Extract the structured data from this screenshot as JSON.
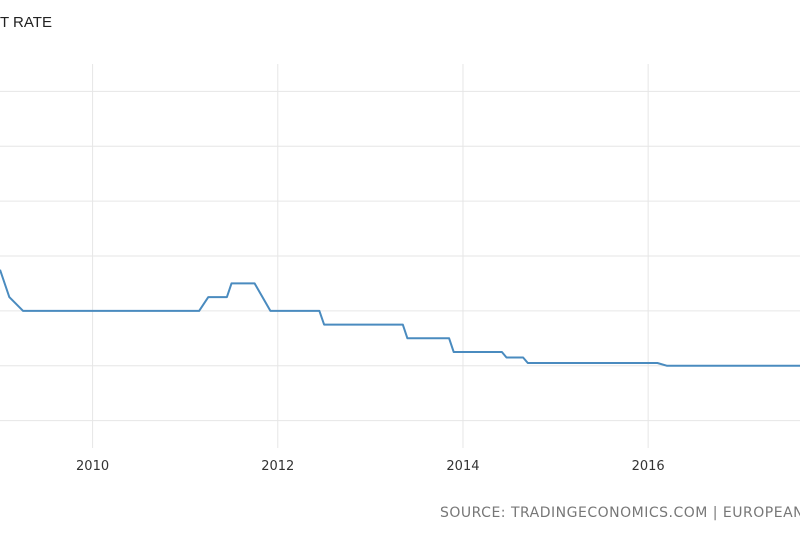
{
  "chart_data": {
    "type": "line",
    "title": "T RATE",
    "xlabel": "",
    "ylabel": "",
    "x_ticks": [
      "2010",
      "2012",
      "2014",
      "2016"
    ],
    "xlim": [
      2009.0,
      2017.64
    ],
    "ylim": [
      -1.5,
      5.5
    ],
    "grid": true,
    "legend": "none",
    "series": [
      {
        "color": "#4a8bbf",
        "points": [
          [
            2009.0,
            1.75
          ],
          [
            2009.1,
            1.25
          ],
          [
            2009.25,
            1.0
          ],
          [
            2009.9,
            1.0
          ],
          [
            2010.5,
            1.0
          ],
          [
            2011.0,
            1.0
          ],
          [
            2011.15,
            1.0
          ],
          [
            2011.25,
            1.25
          ],
          [
            2011.45,
            1.25
          ],
          [
            2011.5,
            1.5
          ],
          [
            2011.75,
            1.5
          ],
          [
            2011.92,
            1.0
          ],
          [
            2012.45,
            1.0
          ],
          [
            2012.5,
            0.75
          ],
          [
            2013.35,
            0.75
          ],
          [
            2013.4,
            0.5
          ],
          [
            2013.85,
            0.5
          ],
          [
            2013.9,
            0.25
          ],
          [
            2014.42,
            0.25
          ],
          [
            2014.47,
            0.15
          ],
          [
            2014.65,
            0.15
          ],
          [
            2014.7,
            0.05
          ],
          [
            2016.1,
            0.05
          ],
          [
            2016.2,
            0.0
          ],
          [
            2017.64,
            0.0
          ]
        ]
      }
    ]
  },
  "footer": {
    "source": "SOURCE: TRADINGECONOMICS.COM | EUROPEAN"
  }
}
